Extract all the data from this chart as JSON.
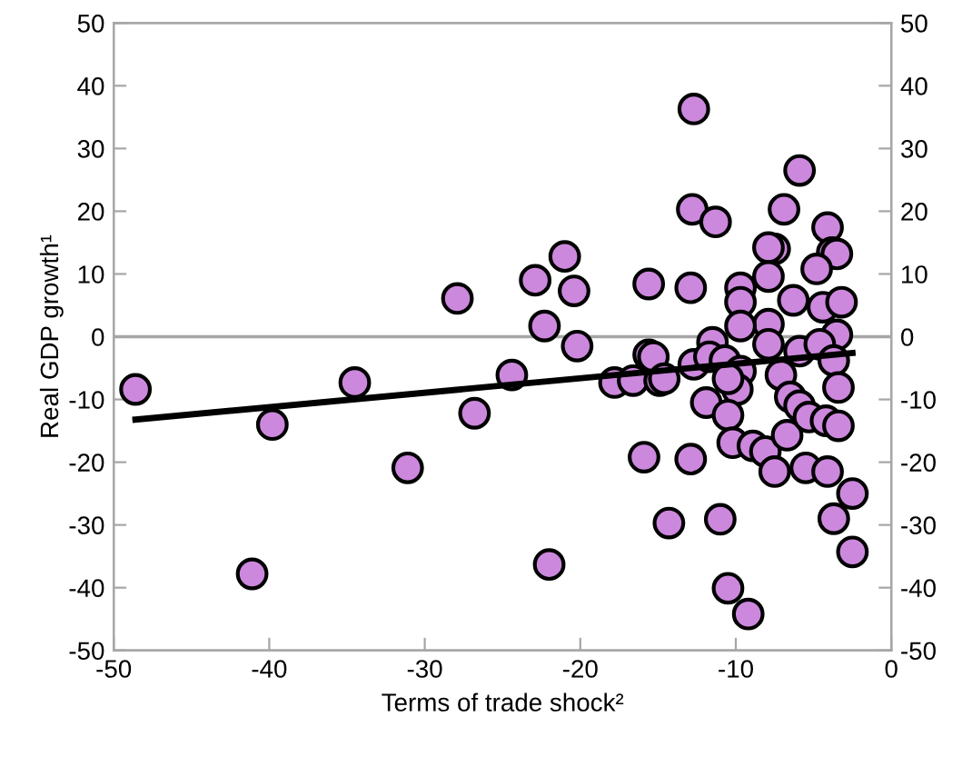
{
  "chart_data": {
    "type": "scatter",
    "xlabel": "Terms of trade shock²",
    "ylabel": "Real GDP growth¹",
    "xlim": [
      -50,
      0
    ],
    "xticks": [
      -50,
      -40,
      -30,
      -20,
      -10,
      0
    ],
    "ylim": [
      -50,
      50
    ],
    "yticks": [
      -50,
      -40,
      -30,
      -20,
      -10,
      0,
      10,
      20,
      30,
      40,
      50
    ],
    "y2lim": [
      -50,
      50
    ],
    "y2ticks": [
      -50,
      -40,
      -30,
      -20,
      -10,
      0,
      10,
      20,
      30,
      40,
      50
    ],
    "grid": false,
    "marker": "circle",
    "ref_lines": [
      {
        "axis": "y",
        "value": 0,
        "color": "#a6a6a6"
      }
    ],
    "series": [
      {
        "color": "#cc88dd",
        "x": [
          -48.6,
          -39.8,
          -41.1,
          -34.5,
          -31.1,
          -27.9,
          -26.8,
          -24.4,
          -22.9,
          -22.3,
          -22.0,
          -21.0,
          -20.4,
          -20.2,
          -17.8,
          -16.6,
          -15.9,
          -15.6,
          -15.6,
          -14.9,
          -14.3,
          -12.7,
          -12.8,
          -11.3,
          -5.9,
          -6.9,
          -4.1,
          -3.8,
          -3.5,
          -7.5,
          -7.9,
          -4.8,
          -7.9,
          -12.9,
          -9.7,
          -9.7,
          -6.3,
          -4.4,
          -3.2,
          -7.9,
          -9.7,
          -11.5,
          -3.5,
          -7.9,
          -15.3,
          -14.6,
          -12.7,
          -11.7,
          -10.7,
          -9.7,
          -9.9,
          -10.5,
          -11.9,
          -10.5,
          -10.2,
          -8.9,
          -8.1,
          -7.5,
          -6.7,
          -7.1,
          -5.9,
          -4.6,
          -3.7,
          -3.4,
          -6.5,
          -5.9,
          -5.3,
          -4.2,
          -3.4,
          -5.5,
          -4.1,
          -2.5,
          -3.7,
          -2.5,
          -11.0,
          -12.9,
          -10.5,
          -9.2
        ],
        "values": [
          -8.4,
          -14,
          -37.8,
          -7.3,
          -20.9,
          6.1,
          -12.2,
          -6.1,
          9,
          1.7,
          -36.3,
          12.8,
          7.3,
          -1.5,
          -7.3,
          -7,
          -19.2,
          8.4,
          -2.9,
          -7,
          -29.7,
          36.3,
          20.3,
          18.3,
          26.5,
          20.3,
          17.4,
          13.4,
          13.2,
          14,
          14.2,
          10.8,
          9.6,
          7.8,
          7.8,
          5.5,
          5.8,
          4.7,
          5.5,
          2.0,
          1.7,
          -0.9,
          0.3,
          -1.2,
          -3.2,
          -6.7,
          -4.4,
          -3.2,
          -3.8,
          -5.5,
          -8.4,
          -6.7,
          -10.5,
          -12.5,
          -16.9,
          -17.4,
          -18.3,
          -21.5,
          -15.7,
          -6.1,
          -2.3,
          -1.2,
          -3.8,
          -8.1,
          -9.6,
          -11,
          -12.8,
          -13.4,
          -14.2,
          -20.9,
          -21.5,
          -25,
          -29,
          -34.3,
          -29.1,
          -19.5,
          -40.1,
          -44.2
        ]
      },
      {
        "type": "line",
        "color": "#000000",
        "marker": "none",
        "x": [
          -48.6,
          -2.5
        ],
        "values": [
          -13.2,
          -2.6
        ]
      }
    ]
  }
}
